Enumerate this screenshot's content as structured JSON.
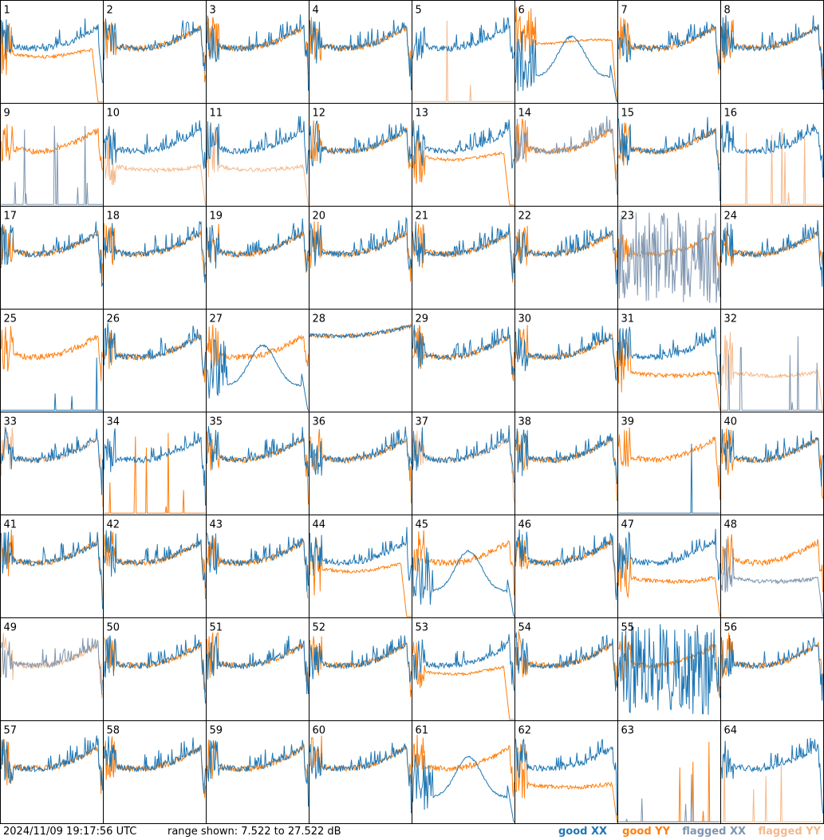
{
  "timestamp": "2024/11/09 19:17:56 UTC",
  "range_text": "range shown: 7.522 to 27.522 dB",
  "legend": [
    {
      "label": "good XX",
      "color": "#1f77b4"
    },
    {
      "label": "good YY",
      "color": "#ff7f0e"
    },
    {
      "label": "flagged XX",
      "color": "#7f96b0"
    },
    {
      "label": "flagged YY",
      "color": "#f5b98b"
    }
  ],
  "chart_data": {
    "type": "line",
    "layout": "8x8 small multiples",
    "y_range_db": [
      7.522,
      27.522
    ],
    "panels": [
      {
        "id": "1",
        "xx": "good",
        "yy": "good",
        "xx_shape": "std",
        "yy_shape": "drop"
      },
      {
        "id": "2",
        "xx": "good",
        "yy": "good",
        "xx_shape": "std",
        "yy_shape": "std"
      },
      {
        "id": "3",
        "xx": "good",
        "yy": "good",
        "xx_shape": "std",
        "yy_shape": "std"
      },
      {
        "id": "4",
        "xx": "good",
        "yy": "good",
        "xx_shape": "std",
        "yy_shape": "std"
      },
      {
        "id": "5",
        "xx": "good",
        "yy": "flagged",
        "xx_shape": "std",
        "yy_shape": "zero"
      },
      {
        "id": "6",
        "xx": "good",
        "yy": "good",
        "xx_shape": "bump",
        "yy_shape": "flat"
      },
      {
        "id": "7",
        "xx": "good",
        "yy": "good",
        "xx_shape": "std",
        "yy_shape": "std"
      },
      {
        "id": "8",
        "xx": "good",
        "yy": "good",
        "xx_shape": "std",
        "yy_shape": "std"
      },
      {
        "id": "9",
        "xx": "flagged",
        "yy": "good",
        "xx_shape": "zero",
        "yy_shape": "std"
      },
      {
        "id": "10",
        "xx": "good",
        "yy": "flagged",
        "xx_shape": "std",
        "yy_shape": "low"
      },
      {
        "id": "11",
        "xx": "good",
        "yy": "flagged",
        "xx_shape": "std",
        "yy_shape": "low"
      },
      {
        "id": "12",
        "xx": "good",
        "yy": "good",
        "xx_shape": "std",
        "yy_shape": "std"
      },
      {
        "id": "13",
        "xx": "good",
        "yy": "good",
        "xx_shape": "std",
        "yy_shape": "drop"
      },
      {
        "id": "14",
        "xx": "flagged",
        "yy": "good",
        "xx_shape": "std",
        "yy_shape": "std"
      },
      {
        "id": "15",
        "xx": "good",
        "yy": "good",
        "xx_shape": "std",
        "yy_shape": "std"
      },
      {
        "id": "16",
        "xx": "good",
        "yy": "flagged",
        "xx_shape": "std",
        "yy_shape": "zero"
      },
      {
        "id": "17",
        "xx": "good",
        "yy": "good",
        "xx_shape": "std",
        "yy_shape": "std"
      },
      {
        "id": "18",
        "xx": "good",
        "yy": "good",
        "xx_shape": "std",
        "yy_shape": "std"
      },
      {
        "id": "19",
        "xx": "good",
        "yy": "good",
        "xx_shape": "std",
        "yy_shape": "std"
      },
      {
        "id": "20",
        "xx": "good",
        "yy": "good",
        "xx_shape": "std",
        "yy_shape": "std"
      },
      {
        "id": "21",
        "xx": "good",
        "yy": "good",
        "xx_shape": "std",
        "yy_shape": "std"
      },
      {
        "id": "22",
        "xx": "good",
        "yy": "good",
        "xx_shape": "std",
        "yy_shape": "std"
      },
      {
        "id": "23",
        "xx": "flagged",
        "yy": "good",
        "xx_shape": "noisy",
        "yy_shape": "std"
      },
      {
        "id": "24",
        "xx": "good",
        "yy": "good",
        "xx_shape": "std",
        "yy_shape": "std"
      },
      {
        "id": "25",
        "xx": "good",
        "yy": "good",
        "xx_shape": "zero",
        "yy_shape": "std"
      },
      {
        "id": "26",
        "xx": "good",
        "yy": "good",
        "xx_shape": "std",
        "yy_shape": "std"
      },
      {
        "id": "27",
        "xx": "good",
        "yy": "good",
        "xx_shape": "bump",
        "yy_shape": "std"
      },
      {
        "id": "28",
        "xx": "good",
        "yy": "good",
        "xx_shape": "high",
        "yy_shape": "high"
      },
      {
        "id": "29",
        "xx": "good",
        "yy": "good",
        "xx_shape": "std",
        "yy_shape": "std"
      },
      {
        "id": "30",
        "xx": "good",
        "yy": "good",
        "xx_shape": "std",
        "yy_shape": "std"
      },
      {
        "id": "31",
        "xx": "good",
        "yy": "good",
        "xx_shape": "std",
        "yy_shape": "low"
      },
      {
        "id": "32",
        "xx": "flagged",
        "yy": "flagged",
        "xx_shape": "zero",
        "yy_shape": "low"
      },
      {
        "id": "33",
        "xx": "good",
        "yy": "flagged",
        "xx_shape": "std",
        "yy_shape": "std"
      },
      {
        "id": "34",
        "xx": "good",
        "yy": "good",
        "xx_shape": "std",
        "yy_shape": "zero"
      },
      {
        "id": "35",
        "xx": "good",
        "yy": "good",
        "xx_shape": "std",
        "yy_shape": "std"
      },
      {
        "id": "36",
        "xx": "good",
        "yy": "good",
        "xx_shape": "std",
        "yy_shape": "std"
      },
      {
        "id": "37",
        "xx": "good",
        "yy": "flagged",
        "xx_shape": "std",
        "yy_shape": "std"
      },
      {
        "id": "38",
        "xx": "good",
        "yy": "good",
        "xx_shape": "std",
        "yy_shape": "std"
      },
      {
        "id": "39",
        "xx": "good",
        "yy": "good",
        "xx_shape": "zero",
        "yy_shape": "std"
      },
      {
        "id": "40",
        "xx": "good",
        "yy": "good",
        "xx_shape": "std",
        "yy_shape": "std"
      },
      {
        "id": "41",
        "xx": "good",
        "yy": "good",
        "xx_shape": "std",
        "yy_shape": "std"
      },
      {
        "id": "42",
        "xx": "good",
        "yy": "good",
        "xx_shape": "std",
        "yy_shape": "std"
      },
      {
        "id": "43",
        "xx": "good",
        "yy": "good",
        "xx_shape": "std",
        "yy_shape": "std"
      },
      {
        "id": "44",
        "xx": "good",
        "yy": "good",
        "xx_shape": "std",
        "yy_shape": "drop"
      },
      {
        "id": "45",
        "xx": "good",
        "yy": "good",
        "xx_shape": "bump",
        "yy_shape": "std"
      },
      {
        "id": "46",
        "xx": "good",
        "yy": "good",
        "xx_shape": "std",
        "yy_shape": "std"
      },
      {
        "id": "47",
        "xx": "good",
        "yy": "good",
        "xx_shape": "std",
        "yy_shape": "low"
      },
      {
        "id": "48",
        "xx": "flagged",
        "yy": "good",
        "xx_shape": "low",
        "yy_shape": "std"
      },
      {
        "id": "49",
        "xx": "flagged",
        "yy": "flagged",
        "xx_shape": "std",
        "yy_shape": "std"
      },
      {
        "id": "50",
        "xx": "good",
        "yy": "good",
        "xx_shape": "std",
        "yy_shape": "std"
      },
      {
        "id": "51",
        "xx": "good",
        "yy": "good",
        "xx_shape": "std",
        "yy_shape": "std"
      },
      {
        "id": "52",
        "xx": "good",
        "yy": "good",
        "xx_shape": "std",
        "yy_shape": "std"
      },
      {
        "id": "53",
        "xx": "good",
        "yy": "good",
        "xx_shape": "std",
        "yy_shape": "drop"
      },
      {
        "id": "54",
        "xx": "good",
        "yy": "good",
        "xx_shape": "std",
        "yy_shape": "std"
      },
      {
        "id": "55",
        "xx": "good",
        "yy": "good",
        "xx_shape": "noisy",
        "yy_shape": "std"
      },
      {
        "id": "56",
        "xx": "good",
        "yy": "good",
        "xx_shape": "std",
        "yy_shape": "std"
      },
      {
        "id": "57",
        "xx": "good",
        "yy": "good",
        "xx_shape": "std",
        "yy_shape": "std"
      },
      {
        "id": "58",
        "xx": "good",
        "yy": "good",
        "xx_shape": "std",
        "yy_shape": "std"
      },
      {
        "id": "59",
        "xx": "good",
        "yy": "good",
        "xx_shape": "std",
        "yy_shape": "std"
      },
      {
        "id": "60",
        "xx": "good",
        "yy": "good",
        "xx_shape": "std",
        "yy_shape": "std"
      },
      {
        "id": "61",
        "xx": "good",
        "yy": "good",
        "xx_shape": "bump",
        "yy_shape": "std"
      },
      {
        "id": "62",
        "xx": "good",
        "yy": "good",
        "xx_shape": "std",
        "yy_shape": "low"
      },
      {
        "id": "63",
        "xx": "flagged",
        "yy": "good",
        "xx_shape": "zero",
        "yy_shape": "zero"
      },
      {
        "id": "64",
        "xx": "good",
        "yy": "flagged",
        "xx_shape": "std",
        "yy_shape": "zero"
      }
    ]
  }
}
